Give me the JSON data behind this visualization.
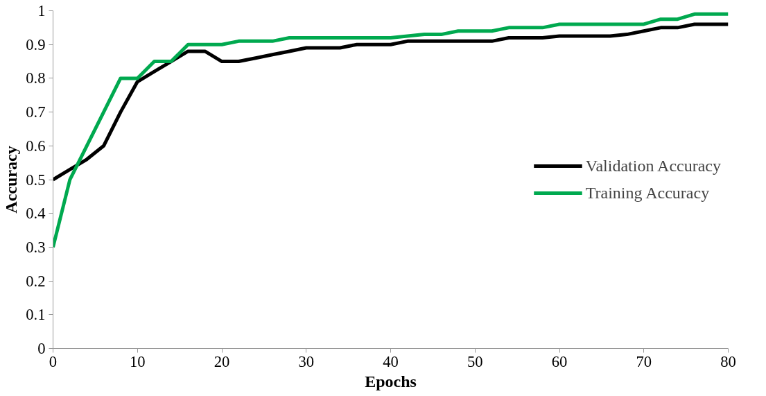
{
  "chart_data": {
    "type": "line",
    "xlabel": "Epochs",
    "ylabel": "Accuracy",
    "x": [
      0,
      2,
      4,
      6,
      8,
      10,
      12,
      14,
      16,
      18,
      20,
      22,
      24,
      26,
      28,
      30,
      32,
      34,
      36,
      38,
      40,
      42,
      44,
      46,
      48,
      50,
      52,
      54,
      56,
      58,
      60,
      62,
      64,
      66,
      68,
      70,
      72,
      74,
      76,
      78,
      80
    ],
    "series": [
      {
        "name": "Validation Accuracy",
        "color": "#000000",
        "values": [
          0.5,
          0.53,
          0.56,
          0.6,
          0.7,
          0.79,
          0.82,
          0.85,
          0.88,
          0.88,
          0.85,
          0.85,
          0.86,
          0.87,
          0.88,
          0.89,
          0.89,
          0.89,
          0.9,
          0.9,
          0.9,
          0.91,
          0.91,
          0.91,
          0.91,
          0.91,
          0.91,
          0.92,
          0.92,
          0.92,
          0.925,
          0.925,
          0.925,
          0.925,
          0.93,
          0.94,
          0.95,
          0.95,
          0.96,
          0.96,
          0.96
        ]
      },
      {
        "name": "Training Accuracy",
        "color": "#00a94f",
        "values": [
          0.3,
          0.5,
          0.6,
          0.7,
          0.8,
          0.8,
          0.85,
          0.85,
          0.9,
          0.9,
          0.9,
          0.91,
          0.91,
          0.91,
          0.92,
          0.92,
          0.92,
          0.92,
          0.92,
          0.92,
          0.92,
          0.925,
          0.93,
          0.93,
          0.94,
          0.94,
          0.94,
          0.95,
          0.95,
          0.95,
          0.96,
          0.96,
          0.96,
          0.96,
          0.96,
          0.96,
          0.975,
          0.975,
          0.99,
          0.99,
          0.99
        ]
      }
    ],
    "xlim": [
      0,
      80
    ],
    "xticks": [
      0,
      10,
      20,
      30,
      40,
      50,
      60,
      70,
      80
    ],
    "ylim": [
      0,
      1
    ],
    "yticks": [
      0,
      0.1,
      0.2,
      0.3,
      0.4,
      0.5,
      0.6,
      0.7,
      0.8,
      0.9,
      1
    ],
    "grid": false,
    "legend": "right",
    "marker": "none",
    "line_style": "solid"
  }
}
